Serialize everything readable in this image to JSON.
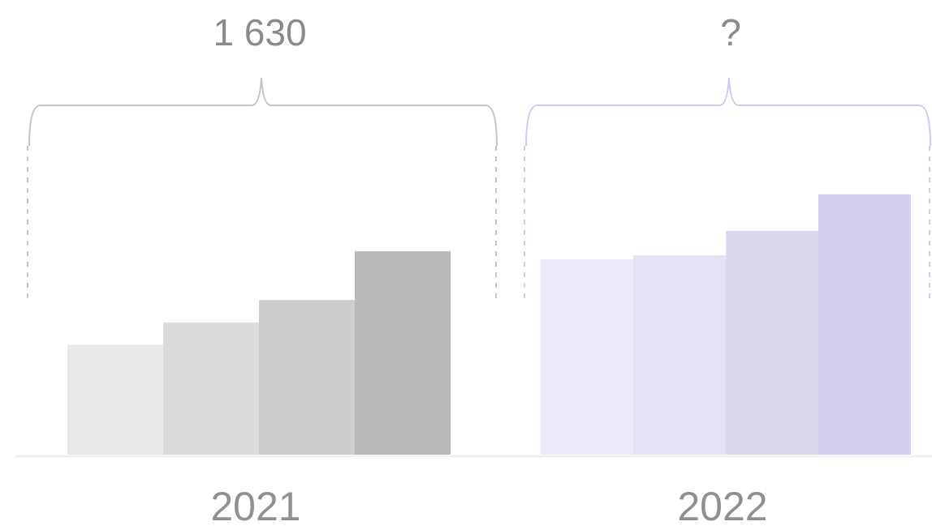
{
  "chart_data": {
    "type": "bar",
    "groups": [
      {
        "category": "2021",
        "total_label": "1 630",
        "values": [
          0.54,
          0.65,
          0.76,
          1.0
        ],
        "colors": [
          "#e9e9e9",
          "#dcdcdc",
          "#cdcdcd",
          "#b9b9b9"
        ],
        "bracket_color": "#c4c4c4"
      },
      {
        "category": "2022",
        "total_label": "?",
        "values": [
          0.96,
          0.98,
          1.1,
          1.28
        ],
        "colors": [
          "#ecebf7",
          "#e4e2f5",
          "#dcd8f2",
          "#d3cdf0"
        ],
        "bracket_color": "#cfcaf2"
      }
    ],
    "ylim": [
      0,
      1.3
    ],
    "grid": false,
    "legend": "none",
    "title": "",
    "xlabel": "",
    "ylabel": ""
  }
}
